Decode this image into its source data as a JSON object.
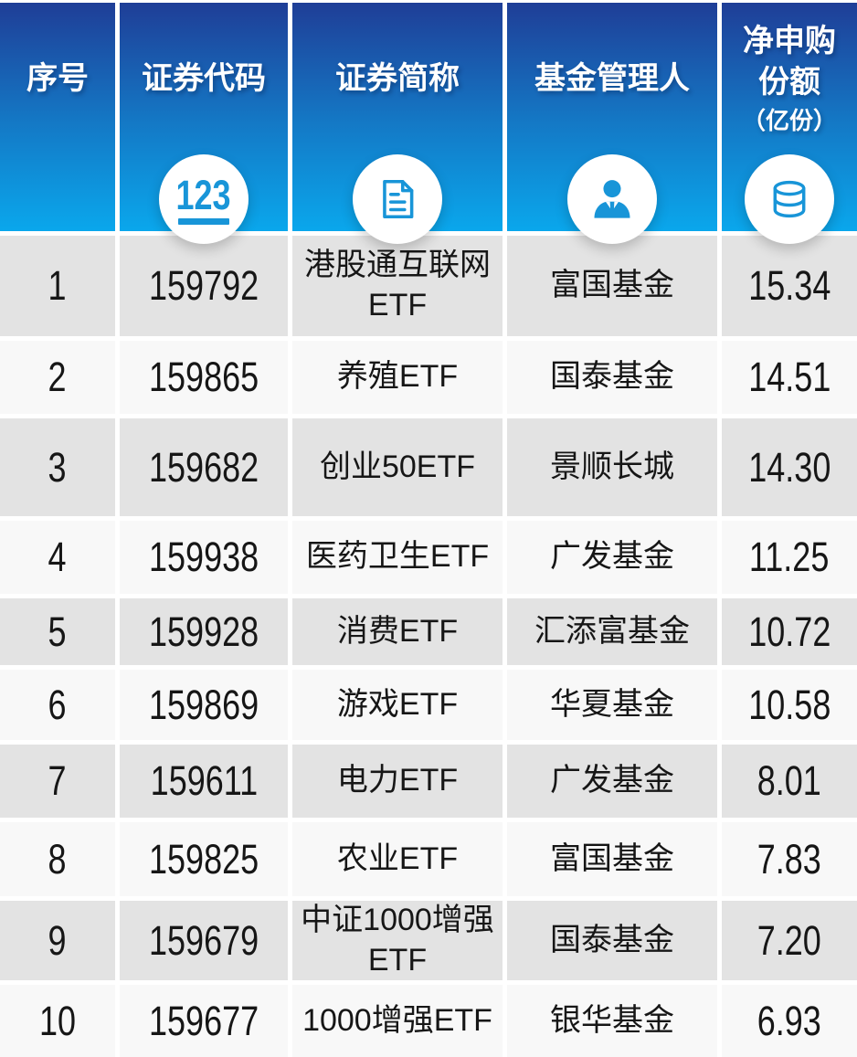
{
  "colors": {
    "header_gradient_top": "#1f3e97",
    "header_gradient_mid": "#1478c5",
    "header_gradient_bottom": "#0aa7ec",
    "icon_blue": "#1895d8",
    "row_gray": "#e3e3e3",
    "row_light": "#f8f8f8",
    "header_text": "#ffffff",
    "body_text": "#161616"
  },
  "chart_data": {
    "type": "table",
    "columns": [
      {
        "key": "no",
        "label": "序号"
      },
      {
        "key": "code",
        "label": "证券代码",
        "icon": "numbers-123-icon",
        "icon_text": "123"
      },
      {
        "key": "name",
        "label": "证券简称",
        "icon": "document-icon"
      },
      {
        "key": "manager",
        "label": "基金管理人",
        "icon": "person-icon"
      },
      {
        "key": "value",
        "label": "净申购份额",
        "sublabel": "（亿份）",
        "icon": "database-icon"
      }
    ],
    "rows": [
      {
        "no": "1",
        "code": "159792",
        "name": "港股通互联网\nETF",
        "manager": "富国基金",
        "value": "15.34"
      },
      {
        "no": "2",
        "code": "159865",
        "name": "养殖ETF",
        "manager": "国泰基金",
        "value": "14.51"
      },
      {
        "no": "3",
        "code": "159682",
        "name": "创业50ETF",
        "manager": "景顺长城",
        "value": "14.30"
      },
      {
        "no": "4",
        "code": "159938",
        "name": "医药卫生ETF",
        "manager": "广发基金",
        "value": "11.25"
      },
      {
        "no": "5",
        "code": "159928",
        "name": "消费ETF",
        "manager": "汇添富基金",
        "value": "10.72"
      },
      {
        "no": "6",
        "code": "159869",
        "name": "游戏ETF",
        "manager": "华夏基金",
        "value": "10.58"
      },
      {
        "no": "7",
        "code": "159611",
        "name": "电力ETF",
        "manager": "广发基金",
        "value": "8.01"
      },
      {
        "no": "8",
        "code": "159825",
        "name": "农业ETF",
        "manager": "富国基金",
        "value": "7.83"
      },
      {
        "no": "9",
        "code": "159679",
        "name": "中证1000增强\nETF",
        "manager": "国泰基金",
        "value": "7.20"
      },
      {
        "no": "10",
        "code": "159677",
        "name": "1000增强ETF",
        "manager": "银华基金",
        "value": "6.93"
      }
    ]
  }
}
